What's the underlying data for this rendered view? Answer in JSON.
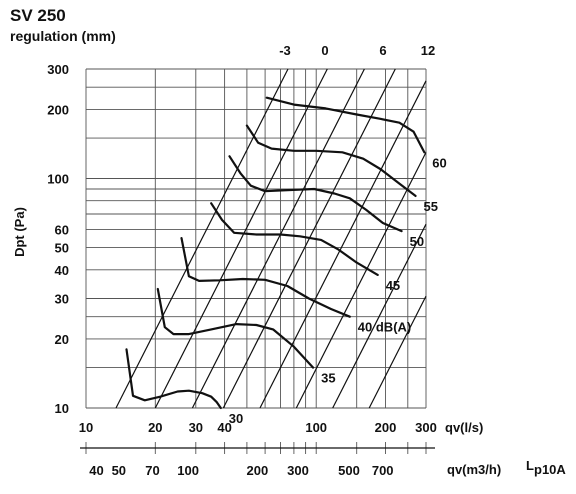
{
  "chart_data": {
    "type": "line",
    "title": "SV 250",
    "subtitle": "regulation (mm)",
    "ylabel": "Dpt (Pa)",
    "y_scale": "log",
    "ylim": [
      10,
      300
    ],
    "y_ticks": [
      10,
      20,
      30,
      40,
      50,
      60,
      100,
      200,
      300
    ],
    "x_scale": "log",
    "x_axis_1": {
      "label": "qv(l/s)",
      "lim": [
        10,
        300
      ],
      "ticks": [
        10,
        20,
        30,
        40,
        100,
        200,
        300
      ]
    },
    "x_axis_2": {
      "label": "qv(m3/h)",
      "ticks": [
        40,
        50,
        70,
        100,
        200,
        300,
        500,
        700
      ]
    },
    "side_label": "Lp10A",
    "side_label_main": "L",
    "side_label_sub": "p10A",
    "regulation_lines": [
      "-3",
      "0",
      "6",
      "12"
    ],
    "series": [
      {
        "name": "30",
        "points": [
          [
            15,
            18
          ],
          [
            16,
            11.3
          ],
          [
            18,
            10.8
          ],
          [
            21,
            11.2
          ],
          [
            25,
            11.8
          ],
          [
            28,
            11.9
          ],
          [
            32,
            11.6
          ],
          [
            35,
            11.2
          ],
          [
            37,
            10.6
          ],
          [
            38.5,
            10
          ]
        ]
      },
      {
        "name": "35",
        "points": [
          [
            20.5,
            33
          ],
          [
            22,
            22.5
          ],
          [
            24,
            21
          ],
          [
            28,
            21
          ],
          [
            35,
            22
          ],
          [
            45,
            23.2
          ],
          [
            55,
            23
          ],
          [
            65,
            22
          ],
          [
            80,
            18.5
          ],
          [
            97,
            15
          ]
        ]
      },
      {
        "name": "40 dB(A)",
        "points": [
          [
            26,
            55
          ],
          [
            28,
            37.5
          ],
          [
            31,
            35.8
          ],
          [
            38,
            36
          ],
          [
            48,
            36.5
          ],
          [
            60,
            36.2
          ],
          [
            75,
            34
          ],
          [
            93,
            30
          ],
          [
            116,
            27
          ],
          [
            140,
            25
          ]
        ]
      },
      {
        "name": "45",
        "points": [
          [
            35,
            78
          ],
          [
            39,
            66
          ],
          [
            44,
            58
          ],
          [
            55,
            57
          ],
          [
            70,
            57
          ],
          [
            85,
            56
          ],
          [
            105,
            54
          ],
          [
            125,
            49
          ],
          [
            150,
            43
          ],
          [
            185,
            38
          ]
        ]
      },
      {
        "name": "50",
        "points": [
          [
            42,
            125
          ],
          [
            47,
            105
          ],
          [
            52,
            93
          ],
          [
            60,
            88
          ],
          [
            75,
            89
          ],
          [
            98,
            90
          ],
          [
            120,
            86
          ],
          [
            140,
            82
          ],
          [
            165,
            73
          ],
          [
            195,
            64
          ],
          [
            235,
            59
          ]
        ]
      },
      {
        "name": "55",
        "points": [
          [
            50,
            170
          ],
          [
            56,
            143
          ],
          [
            64,
            135
          ],
          [
            80,
            132
          ],
          [
            100,
            132
          ],
          [
            130,
            130
          ],
          [
            160,
            122
          ],
          [
            190,
            110
          ],
          [
            230,
            95
          ],
          [
            270,
            84
          ]
        ]
      },
      {
        "name": "60",
        "points": [
          [
            61,
            225
          ],
          [
            80,
            210
          ],
          [
            110,
            202
          ],
          [
            150,
            190
          ],
          [
            190,
            182
          ],
          [
            230,
            175
          ],
          [
            265,
            160
          ],
          [
            295,
            130
          ]
        ]
      }
    ]
  }
}
